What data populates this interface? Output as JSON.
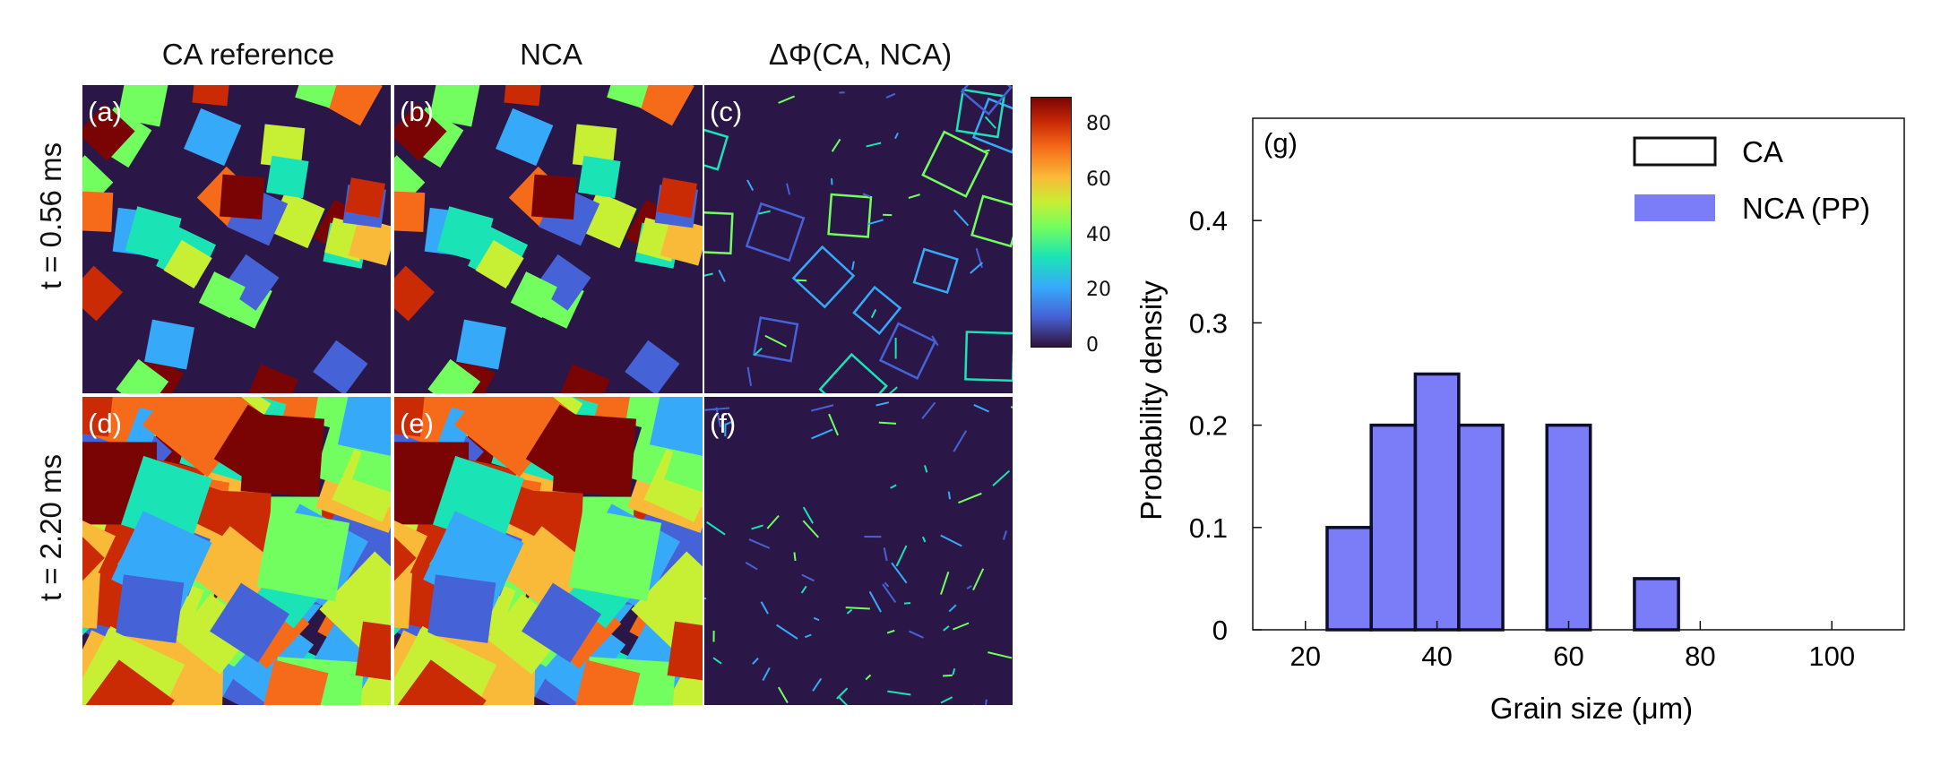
{
  "panels_grid": {
    "column_titles": [
      "CA reference",
      "NCA",
      "ΔΦ(CA, NCA)"
    ],
    "row_labels": [
      "t = 0.56 ms",
      "t = 2.20 ms"
    ],
    "panel_labels": [
      "(a)",
      "(b)",
      "(c)",
      "(d)",
      "(e)",
      "(f)"
    ],
    "colorbar": {
      "ticks": [
        "80",
        "60",
        "40",
        "20",
        "0"
      ],
      "range": [
        0,
        90
      ]
    }
  },
  "chart_data": {
    "type": "bar",
    "panel_label": "(g)",
    "title": "",
    "xlabel": "Grain size (μm)",
    "ylabel": "Probability density",
    "xlim": [
      12,
      111
    ],
    "ylim": [
      0,
      0.5
    ],
    "xticks": [
      "20",
      "40",
      "60",
      "80",
      "100"
    ],
    "yticks": [
      "0",
      "0.1",
      "0.2",
      "0.3",
      "0.4"
    ],
    "bin_edges": [
      16.7,
      23.3,
      30,
      36.7,
      43.3,
      50,
      56.7,
      63.3,
      70,
      76.7,
      83.3,
      90,
      96.7,
      103.3,
      110
    ],
    "series": [
      {
        "name": "CA",
        "values": [
          0,
          0.1,
          0.2,
          0.25,
          0.2,
          0,
          0.2,
          0,
          0.05,
          0,
          0,
          0,
          0,
          0
        ]
      },
      {
        "name": "NCA (PP)",
        "values": [
          0,
          0.1,
          0.2,
          0.25,
          0.2,
          0,
          0.2,
          0,
          0.05,
          0,
          0,
          0,
          0,
          0
        ]
      }
    ],
    "legend": {
      "position": "top-right",
      "entries": [
        "CA",
        "NCA (PP)"
      ]
    },
    "colors": {
      "nca_fill": "#7b7cf7",
      "ca_edge": "#0d0d2e"
    }
  }
}
